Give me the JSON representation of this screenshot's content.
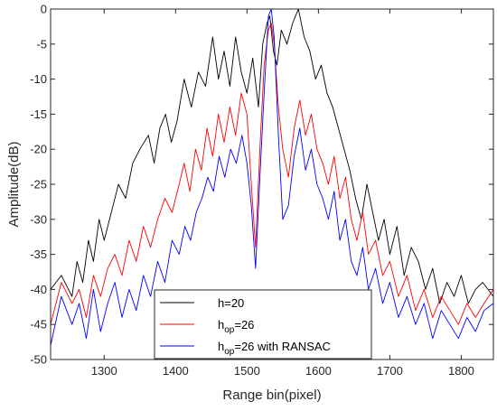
{
  "chart_data": {
    "type": "line",
    "title": "",
    "xlabel": "Range bin(pixel)",
    "ylabel": "Amplitude(dB)",
    "xlim": [
      1225,
      1845
    ],
    "ylim": [
      -50,
      0
    ],
    "xticks": [
      1300,
      1400,
      1500,
      1600,
      1700,
      1800
    ],
    "yticks": [
      0,
      -5,
      -10,
      -15,
      -20,
      -25,
      -30,
      -35,
      -40,
      -45,
      -50
    ],
    "grid": false,
    "legend_position": "bottom-center",
    "series": [
      {
        "name": "h=20",
        "legend_base": "h=20",
        "legend_sub": "",
        "legend_tail": "",
        "color": "#000000",
        "x": [
          1225,
          1240,
          1255,
          1262,
          1270,
          1278,
          1285,
          1293,
          1300,
          1310,
          1320,
          1330,
          1340,
          1350,
          1362,
          1370,
          1378,
          1386,
          1394,
          1402,
          1412,
          1422,
          1432,
          1442,
          1452,
          1460,
          1468,
          1476,
          1484,
          1492,
          1500,
          1508,
          1516,
          1522,
          1528,
          1532,
          1537,
          1542,
          1548,
          1556,
          1564,
          1572,
          1580,
          1588,
          1596,
          1604,
          1612,
          1620,
          1628,
          1636,
          1644,
          1652,
          1660,
          1668,
          1676,
          1684,
          1692,
          1700,
          1710,
          1720,
          1730,
          1740,
          1750,
          1760,
          1770,
          1780,
          1790,
          1800,
          1810,
          1820,
          1830,
          1845
        ],
        "y": [
          -40,
          -38,
          -41,
          -36,
          -39,
          -33,
          -36,
          -30,
          -33,
          -29,
          -25,
          -27,
          -22,
          -20,
          -18,
          -22,
          -17,
          -15,
          -19,
          -16,
          -10,
          -14,
          -9,
          -11,
          -4,
          -10,
          -6,
          -11,
          -4,
          -9,
          -12,
          -7,
          -14,
          -5,
          -2,
          -1,
          -6,
          -8,
          -3,
          -5,
          -2,
          0,
          -4,
          -6,
          -10,
          -8,
          -12,
          -14,
          -17,
          -20,
          -23,
          -27,
          -30,
          -25,
          -29,
          -33,
          -30,
          -35,
          -31,
          -38,
          -34,
          -36,
          -40,
          -37,
          -42,
          -39,
          -41,
          -38,
          -42,
          -40,
          -39,
          -41
        ]
      },
      {
        "name": "hop=26",
        "legend_base": "h",
        "legend_sub": "op",
        "legend_tail": "=26",
        "color": "#ff0000",
        "x": [
          1225,
          1240,
          1255,
          1265,
          1275,
          1285,
          1295,
          1305,
          1315,
          1325,
          1335,
          1345,
          1355,
          1365,
          1375,
          1385,
          1395,
          1405,
          1412,
          1420,
          1428,
          1436,
          1444,
          1452,
          1460,
          1468,
          1476,
          1484,
          1492,
          1500,
          1506,
          1512,
          1518,
          1524,
          1530,
          1534,
          1538,
          1544,
          1550,
          1558,
          1566,
          1574,
          1582,
          1590,
          1598,
          1606,
          1614,
          1622,
          1630,
          1638,
          1646,
          1654,
          1662,
          1670,
          1680,
          1690,
          1700,
          1712,
          1724,
          1736,
          1748,
          1760,
          1772,
          1784,
          1796,
          1808,
          1820,
          1832,
          1845
        ],
        "y": [
          -45,
          -39,
          -42,
          -40,
          -44,
          -38,
          -41,
          -37,
          -35,
          -38,
          -33,
          -36,
          -31,
          -34,
          -30,
          -27,
          -29,
          -25,
          -22,
          -26,
          -20,
          -23,
          -17,
          -21,
          -15,
          -19,
          -14,
          -18,
          -12,
          -15,
          -25,
          -34,
          -20,
          -8,
          -3,
          -2,
          -5,
          -14,
          -20,
          -24,
          -17,
          -13,
          -18,
          -15,
          -20,
          -22,
          -25,
          -21,
          -27,
          -24,
          -30,
          -33,
          -29,
          -35,
          -33,
          -38,
          -36,
          -41,
          -38,
          -43,
          -40,
          -44,
          -41,
          -43,
          -45,
          -42,
          -44,
          -42,
          -40
        ]
      },
      {
        "name": "hop=26 with RANSAC",
        "legend_base": "h",
        "legend_sub": "op",
        "legend_tail": "=26 with RANSAC",
        "color": "#0000ff",
        "x": [
          1225,
          1240,
          1255,
          1265,
          1275,
          1285,
          1295,
          1305,
          1315,
          1325,
          1335,
          1345,
          1355,
          1365,
          1375,
          1385,
          1395,
          1405,
          1413,
          1421,
          1429,
          1437,
          1445,
          1453,
          1461,
          1469,
          1477,
          1485,
          1493,
          1500,
          1506,
          1512,
          1518,
          1524,
          1530,
          1534,
          1538,
          1544,
          1550,
          1558,
          1566,
          1574,
          1582,
          1590,
          1598,
          1606,
          1614,
          1622,
          1630,
          1638,
          1646,
          1654,
          1662,
          1670,
          1680,
          1690,
          1700,
          1712,
          1724,
          1736,
          1748,
          1760,
          1772,
          1784,
          1796,
          1808,
          1820,
          1832,
          1845
        ],
        "y": [
          -48,
          -41,
          -45,
          -42,
          -47,
          -40,
          -46,
          -42,
          -39,
          -44,
          -40,
          -43,
          -38,
          -41,
          -36,
          -39,
          -33,
          -35,
          -31,
          -33,
          -29,
          -27,
          -24,
          -26,
          -21,
          -24,
          -20,
          -22,
          -18,
          -22,
          -28,
          -37,
          -24,
          -12,
          -1,
          0,
          -4,
          -18,
          -30,
          -28,
          -21,
          -17,
          -23,
          -20,
          -25,
          -27,
          -30,
          -26,
          -33,
          -30,
          -36,
          -38,
          -34,
          -40,
          -37,
          -42,
          -39,
          -44,
          -41,
          -45,
          -42,
          -47,
          -43,
          -45,
          -47,
          -44,
          -46,
          -43,
          -42
        ]
      }
    ]
  }
}
